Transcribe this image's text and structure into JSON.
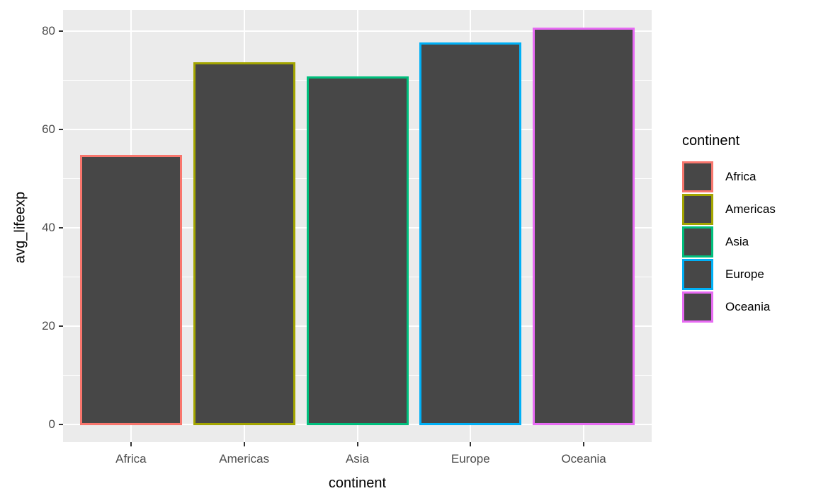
{
  "chart_data": {
    "type": "bar",
    "title": "",
    "categories": [
      "Africa",
      "Americas",
      "Asia",
      "Europe",
      "Oceania"
    ],
    "values": [
      54.8,
      73.6,
      70.7,
      77.6,
      80.7
    ],
    "xlabel": "continent",
    "ylabel": "avg_lifeexp",
    "ylim": [
      -3.5,
      84.5
    ],
    "yticks_major": [
      0,
      20,
      40,
      60,
      80
    ],
    "yticks_minor": [
      10,
      30,
      50,
      70
    ],
    "grid": true,
    "legend_position": "right",
    "legend": {
      "title": "continent",
      "entries": [
        "Africa",
        "Americas",
        "Asia",
        "Europe",
        "Oceania"
      ]
    },
    "colors": {
      "bar_fill": "#474747",
      "outline_palette": [
        "#F8766D",
        "#A3A500",
        "#00BF7D",
        "#00B0F6",
        "#E76BF3"
      ],
      "panel_background": "#EBEBEB",
      "gridline": "#FFFFFF",
      "axis_text": "#4D4D4D",
      "axis_title_text": "#000000",
      "tick_mark": "#333333",
      "page_background": "#FFFFFF"
    }
  }
}
